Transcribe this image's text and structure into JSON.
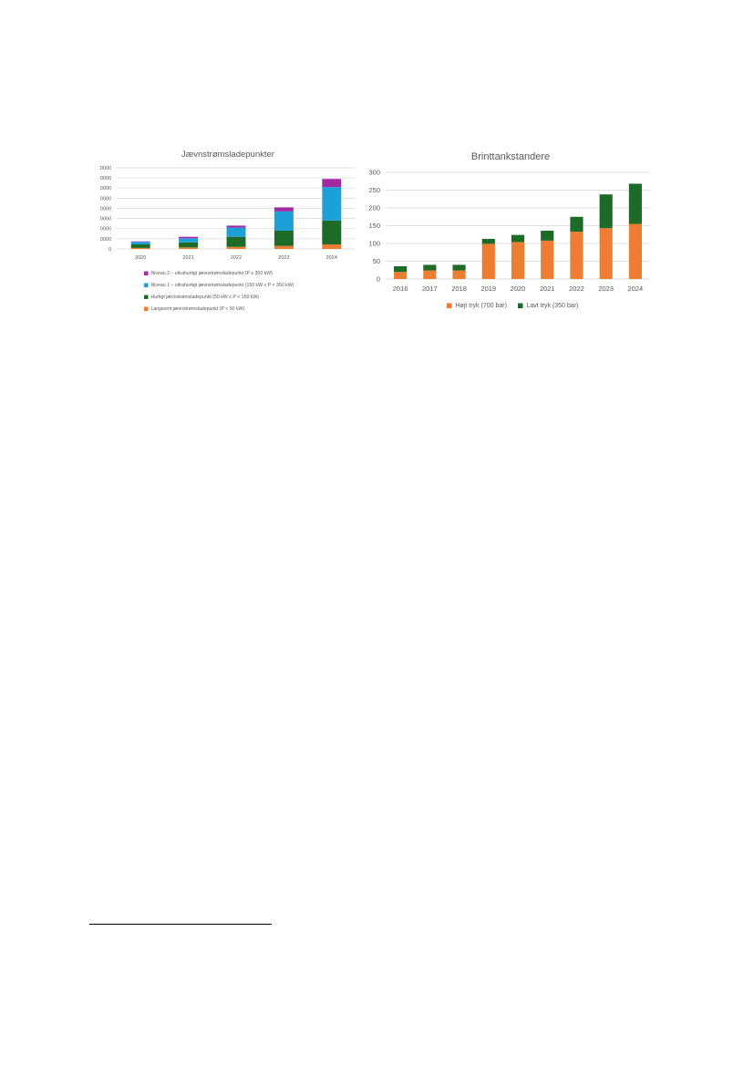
{
  "chart_data": [
    {
      "type": "bar",
      "stacked": true,
      "title": "Jævnstrømsladepunkter",
      "categories": [
        "2020",
        "2021",
        "2022",
        "2023",
        "2024"
      ],
      "ylim": [
        0,
        160000
      ],
      "yticks": [
        0,
        20000,
        40000,
        60000,
        80000,
        100000,
        120000,
        140000,
        160000
      ],
      "grid": true,
      "legend": "bottom",
      "series": [
        {
          "name": "Langsomt jævnstrømsladepunkt (P < 50 kW)",
          "color": "#ed7d31",
          "values": [
            2000,
            3000,
            4000,
            6000,
            9000
          ]
        },
        {
          "name": "Hurtigt jævnstrømsladepunkt (50 kW ≤ P < 150 kW)",
          "color": "#1e6b28",
          "values": [
            7000,
            10000,
            20000,
            30000,
            47000
          ]
        },
        {
          "name": "Niveau 1 – ultrahurtigt jævnstrømsladepunkt (150 kW ≤ P < 350 kW)",
          "color": "#1ba1d8",
          "values": [
            5000,
            8000,
            18000,
            38000,
            66000
          ]
        },
        {
          "name": "Niveau 2 – ultrahurtigt jævnstrømsladepunkt (P ≥ 350 kW)",
          "color": "#a32aa3",
          "values": [
            1000,
            3000,
            4000,
            8000,
            16000
          ]
        }
      ]
    },
    {
      "type": "bar",
      "stacked": true,
      "title": "Brinttankstandere",
      "categories": [
        "2016",
        "2017",
        "2018",
        "2019",
        "2020",
        "2021",
        "2022",
        "2023",
        "2024"
      ],
      "ylim": [
        0,
        300
      ],
      "yticks": [
        0,
        50,
        100,
        150,
        200,
        250,
        300
      ],
      "grid": true,
      "legend": "bottom",
      "series": [
        {
          "name": "Højt tryk (700 bar)",
          "color": "#ed7d31",
          "values": [
            20,
            24,
            24,
            99,
            104,
            108,
            133,
            143,
            155
          ]
        },
        {
          "name": "Lavt tryk (350 bar)",
          "color": "#1e6b28",
          "values": [
            16,
            16,
            16,
            14,
            20,
            28,
            42,
            95,
            113
          ]
        }
      ]
    }
  ]
}
